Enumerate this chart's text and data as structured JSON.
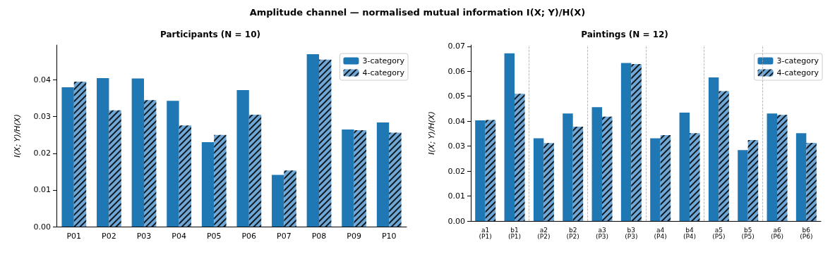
{
  "chart_data": [
    {
      "type": "bar",
      "title": "Participants (N = 10)",
      "ylabel": "I(X; Y)/H(X)",
      "annotations": [
        "Amplitude channel — normalised mutual information I(X; Y)/H(X)"
      ],
      "categories": [
        "P01",
        "P02",
        "P03",
        "P04",
        "P05",
        "P06",
        "P07",
        "P08",
        "P09",
        "P10"
      ],
      "series": [
        {
          "name": "3-category",
          "color": "#1f77b4",
          "values": [
            0.038,
            0.0405,
            0.0404,
            0.0343,
            0.023,
            0.0372,
            0.0141,
            0.047,
            0.0265,
            0.0284
          ]
        },
        {
          "name": "4-category",
          "color": "#6fa8d6",
          "values": [
            0.0395,
            0.0317,
            0.0345,
            0.0276,
            0.025,
            0.0305,
            0.0153,
            0.0455,
            0.0263,
            0.0256
          ]
        }
      ],
      "ylim": [
        0,
        0.0495
      ],
      "yticks": [
        {
          "value": 0,
          "label": "0.00"
        },
        0.01,
        0.02,
        0.03,
        0.04
      ],
      "legend": "top right"
    },
    {
      "type": "bar",
      "title": "Paintings (N = 12)",
      "ylabel": "I(X; Y)/H(X)",
      "categories": [
        "a1\n(P1)",
        "b1\n(P1)",
        "a2\n(P2)",
        "b2\n(P2)",
        "a3\n(P3)",
        "b3\n(P3)",
        "a4\n(P4)",
        "b4\n(P4)",
        "a5\n(P5)",
        "b5\n(P5)",
        "a6\n(P6)",
        "b6\n(P6)"
      ],
      "series": [
        {
          "name": "3-category",
          "color": "#1f77b4",
          "values": [
            0.0403,
            0.0672,
            0.0331,
            0.0431,
            0.0456,
            0.0633,
            0.0331,
            0.0434,
            0.0575,
            0.0284,
            0.0431,
            0.0352
          ]
        },
        {
          "name": "4-category",
          "color": "#6fa8d6",
          "values": [
            0.0405,
            0.051,
            0.0312,
            0.0378,
            0.0418,
            0.0629,
            0.0344,
            0.0352,
            0.052,
            0.0324,
            0.0425,
            0.0313
          ]
        }
      ],
      "ylim": [
        0,
        0.0705
      ],
      "yticks": [
        {
          "value": 0,
          "label": "0.00"
        },
        0.01,
        0.02,
        0.03,
        0.04,
        0.05,
        0.06,
        0.07
      ],
      "legend": "top right"
    }
  ]
}
